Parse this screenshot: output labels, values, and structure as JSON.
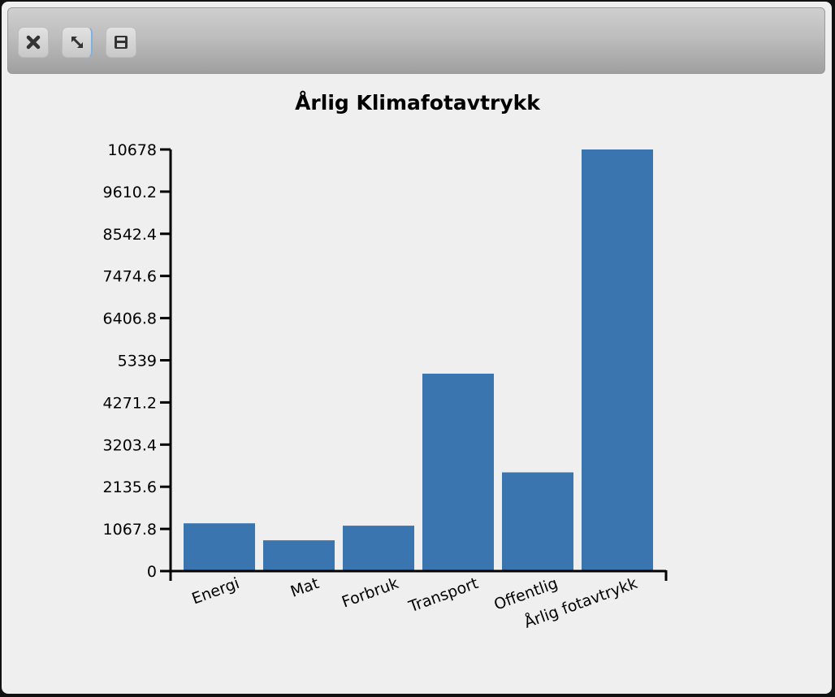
{
  "toolbar": {
    "buttons": [
      {
        "name": "close-button",
        "icon": "close-icon"
      },
      {
        "name": "resize-button",
        "icon": "resize-icon"
      },
      {
        "name": "save-button",
        "icon": "save-icon"
      }
    ]
  },
  "colors": {
    "bar": "#3b75b0",
    "axis": "#000000",
    "background": "#efefef"
  },
  "chart_data": {
    "type": "bar",
    "title": "Årlig Klimafotavtrykk",
    "xlabel": "",
    "ylabel": "",
    "categories": [
      "Energi",
      "Mat",
      "Forbruk",
      "Transport",
      "Offentlig",
      "Årlig fotavtrykk"
    ],
    "values": [
      1210,
      780,
      1150,
      5000,
      2500,
      10678
    ],
    "ylim": [
      0,
      10678
    ],
    "yticks": [
      "0",
      "1067.8",
      "2135.6",
      "3203.4",
      "4271.2",
      "5339",
      "6406.8",
      "7474.6",
      "8542.4",
      "9610.2",
      "10678"
    ],
    "grid": false,
    "legend": "none"
  }
}
